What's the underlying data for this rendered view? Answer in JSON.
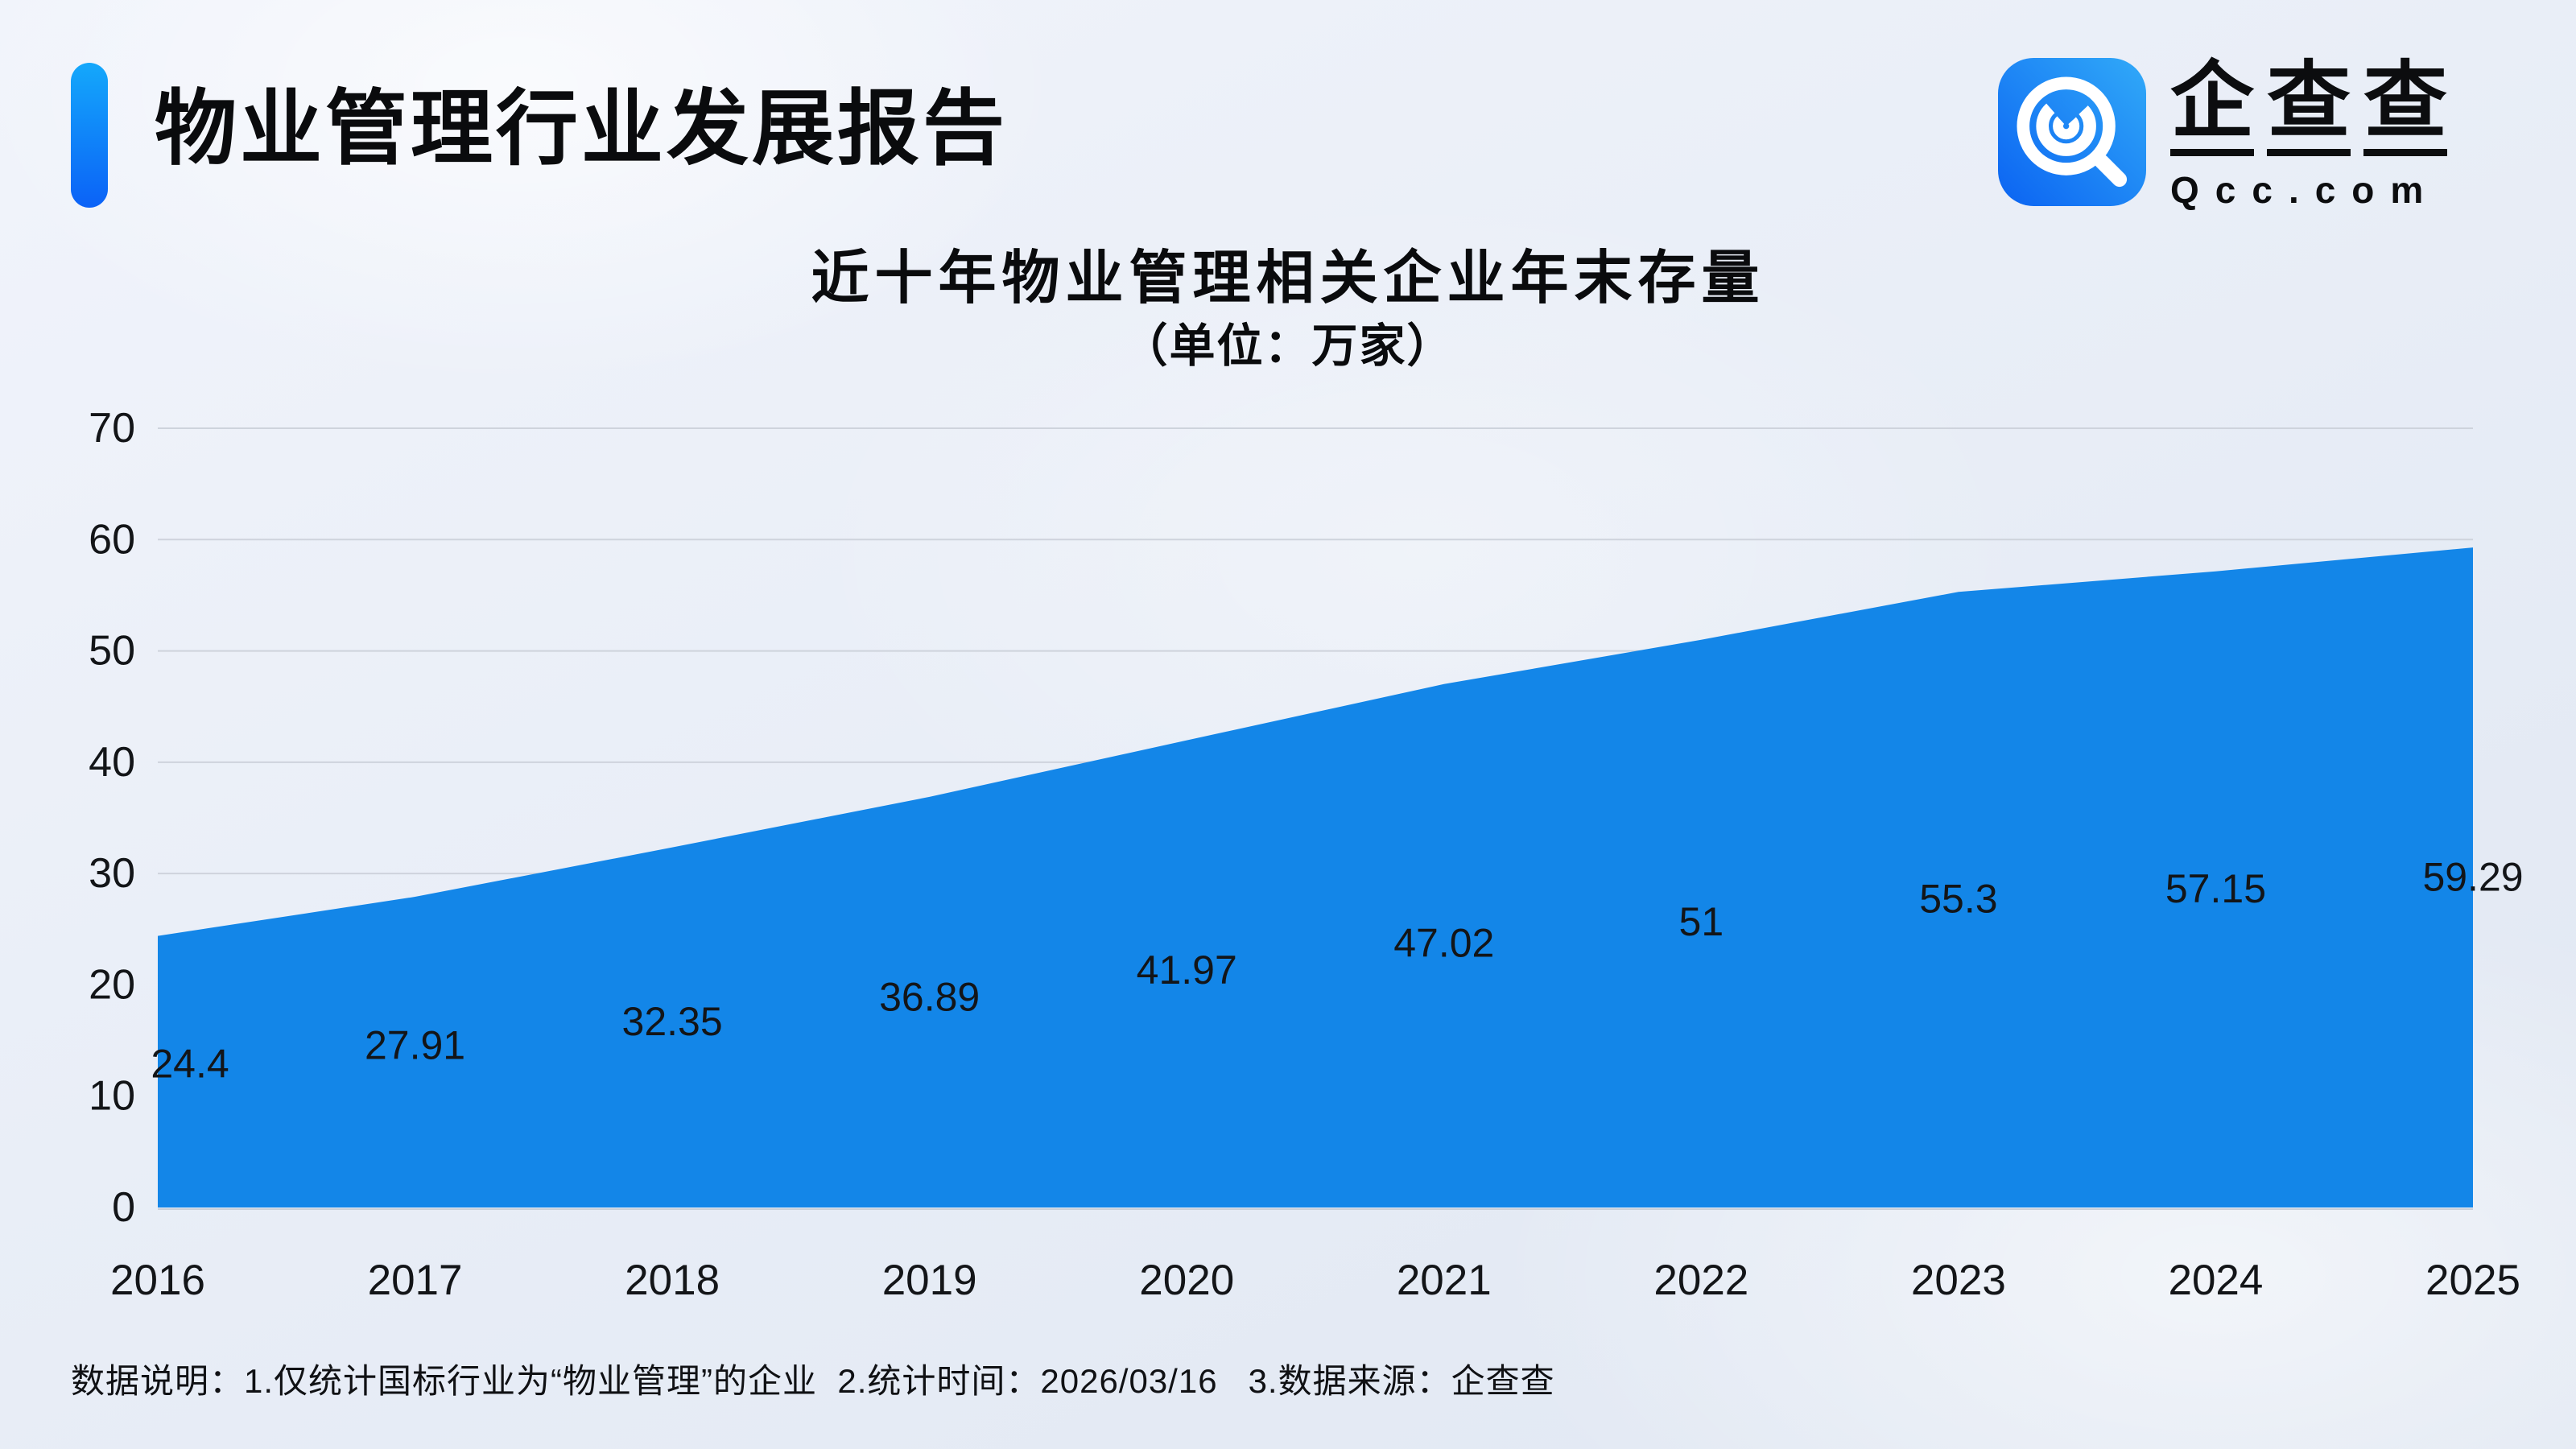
{
  "header": {
    "title": "物业管理行业发展报告"
  },
  "logo": {
    "icon": "qcc-magnifier-icon",
    "brand_chars": [
      "企",
      "查",
      "查"
    ],
    "domain": "Qcc.com",
    "colors": {
      "icon_light": "#31aaf8",
      "icon_dark": "#0b63f2"
    }
  },
  "chart_data": {
    "type": "area",
    "title": "近十年物业管理相关企业年末存量",
    "subtitle": "（单位：万家）",
    "unit": "万家",
    "categories": [
      "2016",
      "2017",
      "2018",
      "2019",
      "2020",
      "2021",
      "2022",
      "2023",
      "2024",
      "2025"
    ],
    "values": [
      24.4,
      27.91,
      32.35,
      36.89,
      41.97,
      47.02,
      51,
      55.3,
      57.15,
      59.29
    ],
    "value_labels": [
      "24.4",
      "27.91",
      "32.35",
      "36.89",
      "41.97",
      "47.02",
      "51",
      "55.3",
      "57.15",
      "59.29"
    ],
    "ylim": [
      0,
      70
    ],
    "yticks": [
      0,
      10,
      20,
      30,
      40,
      50,
      60,
      70
    ],
    "grid": true,
    "legend_position": "none",
    "colors": {
      "area": "#1386e8",
      "grid": "#ced3dc",
      "axis": "#c9cfd9",
      "text": "#131518"
    }
  },
  "footer": {
    "note": "数据说明：1.仅统计国标行业为“物业管理”的企业  2.统计时间：2026/03/16   3.数据来源：企查查"
  }
}
